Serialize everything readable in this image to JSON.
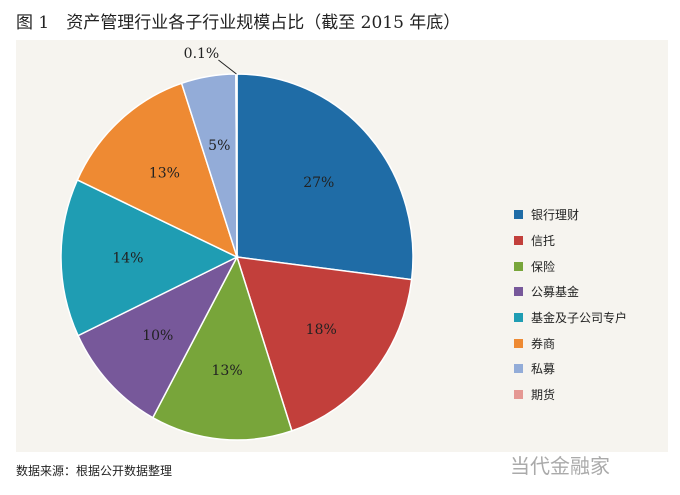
{
  "title": "图 1　资产管理行业各子行业规模占比（截至 2015 年底）",
  "source": "数据来源：根据公开数据整理",
  "watermark": "当代金融家",
  "chart_data": {
    "type": "pie",
    "title": "图 1　资产管理行业各子行业规模占比（截至 2015 年底）",
    "legend_position": "right",
    "slices": [
      {
        "name": "银行理财",
        "value": 27,
        "label": "27%",
        "color": "#1f6ca6"
      },
      {
        "name": "信托",
        "value": 18,
        "label": "18%",
        "color": "#c23f3b"
      },
      {
        "name": "保险",
        "value": 13,
        "label": "13%",
        "color": "#78a53a"
      },
      {
        "name": "公募基金",
        "value": 10,
        "label": "10%",
        "color": "#77589a"
      },
      {
        "name": "基金及子公司专户",
        "value": 14,
        "label": "14%",
        "color": "#1f9db3"
      },
      {
        "name": "券商",
        "value": 13,
        "label": "13%",
        "color": "#ee8a33"
      },
      {
        "name": "私募",
        "value": 5,
        "label": "5%",
        "color": "#93acd8"
      },
      {
        "name": "期货",
        "value": 0.1,
        "label": "0.1%",
        "color": "#e59893"
      }
    ]
  }
}
